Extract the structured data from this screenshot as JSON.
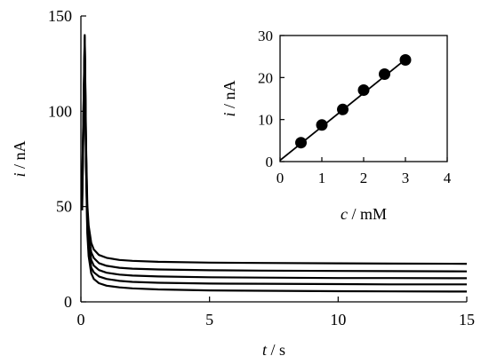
{
  "chart_data": [
    {
      "type": "line",
      "xlabel": {
        "var": "t",
        "unit": " / s"
      },
      "ylabel": {
        "var": "i",
        "unit": " / nA"
      },
      "xlim": [
        0,
        15
      ],
      "ylim": [
        0,
        150
      ],
      "xticks": [
        "0",
        "5",
        "10",
        "15"
      ],
      "yticks": [
        "0",
        "50",
        "100",
        "150"
      ],
      "grid": false,
      "line_color": "#000000",
      "series": [
        {
          "x": [
            0.05,
            0.15,
            0.2,
            0.25,
            0.3,
            0.4,
            0.5,
            0.7,
            1,
            1.5,
            2,
            3,
            5,
            7,
            10,
            12,
            15
          ],
          "values": [
            48,
            132,
            70,
            36,
            24,
            15,
            12,
            9.8,
            8.5,
            7.6,
            7.1,
            6.5,
            6.0,
            5.8,
            5.6,
            5.5,
            5.4
          ]
        },
        {
          "x": [
            0.05,
            0.15,
            0.2,
            0.25,
            0.3,
            0.4,
            0.5,
            0.7,
            1,
            1.5,
            2,
            3,
            5,
            7,
            10,
            12,
            15
          ],
          "values": [
            52,
            136,
            73,
            39,
            27,
            18,
            15.5,
            13.3,
            12.0,
            11.0,
            10.5,
            10.0,
            9.6,
            9.5,
            9.3,
            9.2,
            9.2
          ]
        },
        {
          "x": [
            0.05,
            0.15,
            0.2,
            0.25,
            0.3,
            0.4,
            0.5,
            0.7,
            1,
            1.5,
            2,
            3,
            5,
            7,
            10,
            12,
            15
          ],
          "values": [
            55,
            138,
            76,
            43,
            31,
            22,
            19,
            16.7,
            15.3,
            14.3,
            13.8,
            13.3,
            12.9,
            12.7,
            12.5,
            12.5,
            12.4
          ]
        },
        {
          "x": [
            0.05,
            0.15,
            0.2,
            0.25,
            0.3,
            0.4,
            0.5,
            0.7,
            1,
            1.5,
            2,
            3,
            5,
            7,
            10,
            12,
            15
          ],
          "values": [
            58,
            139,
            79,
            47,
            35,
            26,
            23,
            20.3,
            18.9,
            17.9,
            17.4,
            17.0,
            16.6,
            16.4,
            16.2,
            16.1,
            16.0
          ]
        },
        {
          "x": [
            0.05,
            0.15,
            0.2,
            0.25,
            0.3,
            0.4,
            0.5,
            0.7,
            1,
            1.5,
            2,
            3,
            5,
            7,
            10,
            12,
            15
          ],
          "values": [
            60,
            140,
            82,
            51,
            40,
            31,
            27.5,
            24.6,
            23.1,
            22.0,
            21.5,
            21.0,
            20.6,
            20.4,
            20.2,
            20.1,
            20.0
          ]
        }
      ]
    },
    {
      "type": "scatter",
      "xlabel": {
        "var": "c",
        "unit": " / mM"
      },
      "ylabel": {
        "var": "i",
        "unit": " / nA"
      },
      "xlim": [
        0,
        4
      ],
      "ylim": [
        0,
        30
      ],
      "xticks": [
        "0",
        "1",
        "2",
        "3",
        "4"
      ],
      "yticks": [
        "0",
        "10",
        "20",
        "30"
      ],
      "grid": false,
      "marker_color": "#000000",
      "x": [
        0.5,
        1.0,
        1.5,
        2.0,
        2.5,
        3.0
      ],
      "values": [
        4.5,
        8.7,
        12.4,
        17.0,
        20.8,
        24.2
      ],
      "fit_line": {
        "x": [
          0,
          3.0
        ],
        "values": [
          0.3,
          24.3
        ]
      }
    }
  ]
}
